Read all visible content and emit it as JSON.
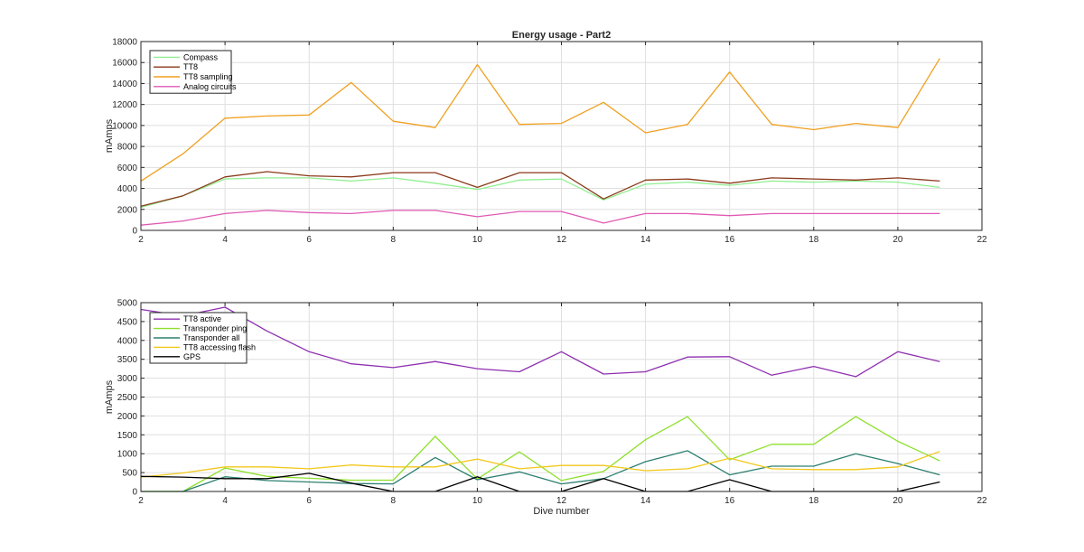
{
  "chart_data": [
    {
      "type": "line",
      "title": "Energy usage - Part2",
      "xlabel": "",
      "ylabel": "mAmps",
      "xlim": [
        2,
        22
      ],
      "ylim": [
        0,
        18000
      ],
      "xticks": [
        "2",
        "4",
        "6",
        "8",
        "10",
        "12",
        "14",
        "16",
        "18",
        "20",
        "22"
      ],
      "yticks": [
        "0",
        "2000",
        "4000",
        "6000",
        "8000",
        "10000",
        "12000",
        "14000",
        "16000",
        "18000"
      ],
      "grid": true,
      "legend_position": "top-left",
      "x": [
        2,
        3,
        4,
        5,
        6,
        7,
        8,
        9,
        10,
        11,
        12,
        13,
        14,
        15,
        16,
        17,
        18,
        19,
        20,
        21
      ],
      "series": [
        {
          "name": "Compass",
          "color": "#90ee90",
          "values": [
            2200,
            3300,
            4900,
            5000,
            5000,
            4700,
            5000,
            4500,
            3900,
            4800,
            4900,
            2900,
            4400,
            4600,
            4300,
            4700,
            4600,
            4700,
            4600,
            4100
          ]
        },
        {
          "name": "TT8",
          "color": "#8b3a1a",
          "values": [
            2300,
            3300,
            5100,
            5600,
            5200,
            5100,
            5500,
            5500,
            4100,
            5500,
            5500,
            3000,
            4800,
            4900,
            4500,
            5000,
            4900,
            4800,
            5000,
            4700
          ]
        },
        {
          "name": "TT8 sampling",
          "color": "#f0a020",
          "values": [
            4700,
            7300,
            10700,
            10900,
            11000,
            14100,
            10400,
            9800,
            15800,
            10100,
            10200,
            12200,
            9300,
            10100,
            15100,
            10100,
            9600,
            10200,
            9800,
            16400
          ]
        },
        {
          "name": "Analog circuits",
          "color": "#e05ab4",
          "values": [
            500,
            900,
            1600,
            1900,
            1700,
            1600,
            1900,
            1900,
            1300,
            1800,
            1800,
            700,
            1600,
            1600,
            1400,
            1600,
            1600,
            1600,
            1600,
            1600
          ]
        }
      ]
    },
    {
      "type": "line",
      "title": "",
      "xlabel": "Dive number",
      "ylabel": "mAmps",
      "xlim": [
        2,
        22
      ],
      "ylim": [
        0,
        5000
      ],
      "xticks": [
        "2",
        "4",
        "6",
        "8",
        "10",
        "12",
        "14",
        "16",
        "18",
        "20",
        "22"
      ],
      "yticks": [
        "0",
        "500",
        "1000",
        "1500",
        "2000",
        "2500",
        "3000",
        "3500",
        "4000",
        "4500",
        "5000"
      ],
      "grid": true,
      "legend_position": "top-left",
      "x": [
        2,
        3,
        4,
        5,
        6,
        7,
        8,
        9,
        10,
        11,
        12,
        13,
        14,
        15,
        16,
        17,
        18,
        19,
        20,
        21
      ],
      "series": [
        {
          "name": "TT8 active",
          "color": "#8e2fb0",
          "values": [
            4820,
            4650,
            4880,
            4250,
            3700,
            3380,
            3280,
            3440,
            3250,
            3170,
            3700,
            3110,
            3170,
            3560,
            3570,
            3080,
            3310,
            3040,
            3700,
            3440
          ]
        },
        {
          "name": "Transponder ping",
          "color": "#8ee02c",
          "values": [
            0,
            0,
            620,
            400,
            350,
            300,
            300,
            1460,
            330,
            1050,
            290,
            530,
            1370,
            1980,
            840,
            1250,
            1250,
            1980,
            1330,
            810
          ]
        },
        {
          "name": "Transponder all",
          "color": "#2d8070",
          "values": [
            0,
            0,
            390,
            290,
            250,
            210,
            200,
            900,
            310,
            520,
            200,
            340,
            790,
            1080,
            440,
            670,
            670,
            1000,
            740,
            440
          ]
        },
        {
          "name": "TT8 accessing flash",
          "color": "#f2c81c",
          "values": [
            380,
            490,
            650,
            650,
            600,
            700,
            650,
            650,
            860,
            600,
            690,
            690,
            550,
            600,
            880,
            600,
            580,
            580,
            650,
            1060
          ]
        },
        {
          "name": "GPS",
          "color": "#000000",
          "values": [
            400,
            380,
            340,
            340,
            480,
            220,
            0,
            0,
            390,
            0,
            0,
            340,
            0,
            0,
            310,
            0,
            0,
            0,
            0,
            250
          ]
        }
      ]
    }
  ]
}
